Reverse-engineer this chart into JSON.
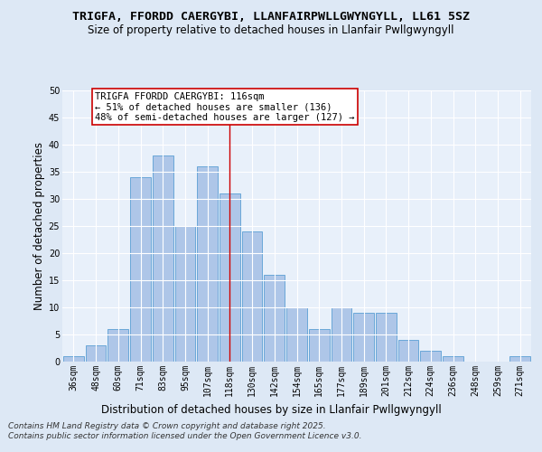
{
  "title1": "TRIGFA, FFORDD CAERGYBI, LLANFAIRPWLLGWYNGYLL, LL61 5SZ",
  "title2": "Size of property relative to detached houses in Llanfair Pwllgwyngyll",
  "xlabel": "Distribution of detached houses by size in Llanfair Pwllgwyngyll",
  "ylabel": "Number of detached properties",
  "categories": [
    "36sqm",
    "48sqm",
    "60sqm",
    "71sqm",
    "83sqm",
    "95sqm",
    "107sqm",
    "118sqm",
    "130sqm",
    "142sqm",
    "154sqm",
    "165sqm",
    "177sqm",
    "189sqm",
    "201sqm",
    "212sqm",
    "224sqm",
    "236sqm",
    "248sqm",
    "259sqm",
    "271sqm"
  ],
  "values": [
    1,
    3,
    6,
    34,
    38,
    25,
    36,
    31,
    24,
    16,
    10,
    6,
    10,
    9,
    9,
    4,
    2,
    1,
    0,
    0,
    1
  ],
  "bar_color": "#aec6e8",
  "bar_edge_color": "#5a9fd4",
  "ylim": [
    0,
    50
  ],
  "yticks": [
    0,
    5,
    10,
    15,
    20,
    25,
    30,
    35,
    40,
    45,
    50
  ],
  "vline_x": 7,
  "vline_color": "#cc0000",
  "annotation_title": "TRIGFA FFORDD CAERGYBI: 116sqm",
  "annotation_line1": "← 51% of detached houses are smaller (136)",
  "annotation_line2": "48% of semi-detached houses are larger (127) →",
  "annotation_box_color": "#ffffff",
  "annotation_box_edge": "#cc0000",
  "footer": "Contains HM Land Registry data © Crown copyright and database right 2025.\nContains public sector information licensed under the Open Government Licence v3.0.",
  "bg_color": "#dde8f5",
  "plot_bg_color": "#e8f0fa",
  "grid_color": "#ffffff",
  "title_fontsize": 9.5,
  "subtitle_fontsize": 8.5,
  "axis_label_fontsize": 8.5,
  "tick_fontsize": 7,
  "footer_fontsize": 6.5,
  "annotation_fontsize": 7.5
}
